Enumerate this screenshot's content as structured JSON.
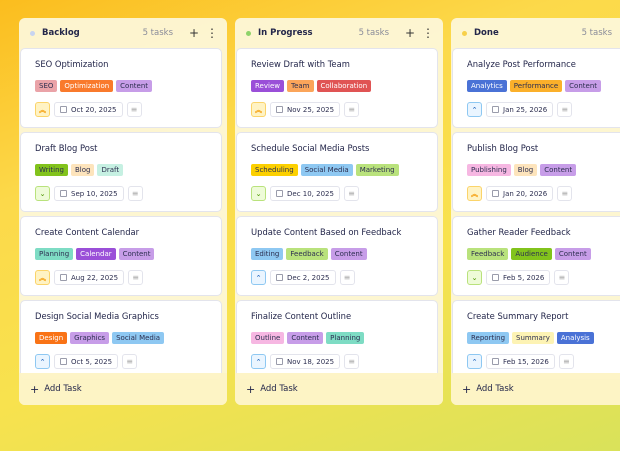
{
  "add_task_label": "Add Task",
  "columns": [
    {
      "title": "Backlog",
      "count": "5 tasks",
      "dot_color": "#c8d4f0",
      "cards": [
        {
          "title": "SEO Optimization",
          "priority": "high",
          "date": "Oct 20, 2025",
          "tags": [
            {
              "label": "SEO",
              "bg": "#eaa3a8",
              "fg": "#2d2f50"
            },
            {
              "label": "Optimization",
              "bg": "#f97a2c",
              "fg": "#fff"
            },
            {
              "label": "Content",
              "bg": "#c79de8",
              "fg": "#2d2f50"
            }
          ]
        },
        {
          "title": "Draft Blog Post",
          "priority": "low",
          "date": "Sep 10, 2025",
          "tags": [
            {
              "label": "Writing",
              "bg": "#82c31c",
              "fg": "#2d2f50"
            },
            {
              "label": "Blog",
              "bg": "#fde4bc",
              "fg": "#2d2f50"
            },
            {
              "label": "Draft",
              "bg": "#c6f0e2",
              "fg": "#2d2f50"
            }
          ]
        },
        {
          "title": "Create Content Calendar",
          "priority": "high",
          "date": "Aug 22, 2025",
          "tags": [
            {
              "label": "Planning",
              "bg": "#7edcc4",
              "fg": "#2d2f50"
            },
            {
              "label": "Calendar",
              "bg": "#9a4fd8",
              "fg": "#fff"
            },
            {
              "label": "Content",
              "bg": "#c79de8",
              "fg": "#2d2f50"
            }
          ]
        },
        {
          "title": "Design Social Media Graphics",
          "priority": "medium",
          "date": "Oct 5, 2025",
          "tags": [
            {
              "label": "Design",
              "bg": "#f97316",
              "fg": "#fff"
            },
            {
              "label": "Graphics",
              "bg": "#c79de8",
              "fg": "#2d2f50"
            },
            {
              "label": "Social Media",
              "bg": "#8ec8f2",
              "fg": "#2d2f50"
            }
          ]
        }
      ]
    },
    {
      "title": "In Progress",
      "count": "5 tasks",
      "dot_color": "#8ed36a",
      "cards": [
        {
          "title": "Review Draft with Team",
          "priority": "high",
          "date": "Nov 25, 2025",
          "tags": [
            {
              "label": "Review",
              "bg": "#9a4fd8",
              "fg": "#fff"
            },
            {
              "label": "Team",
              "bg": "#fba55a",
              "fg": "#2d2f50"
            },
            {
              "label": "Collaboration",
              "bg": "#e05454",
              "fg": "#fff"
            }
          ]
        },
        {
          "title": "Schedule Social Media Posts",
          "priority": "low",
          "date": "Dec 10, 2025",
          "tags": [
            {
              "label": "Scheduling",
              "bg": "#fcd000",
              "fg": "#2d2f50"
            },
            {
              "label": "Social Media",
              "bg": "#8ec8f2",
              "fg": "#2d2f50"
            },
            {
              "label": "Marketing",
              "bg": "#b9e27c",
              "fg": "#2d2f50"
            }
          ]
        },
        {
          "title": "Update Content Based on Feedback",
          "priority": "medium",
          "date": "Dec 2, 2025",
          "tags": [
            {
              "label": "Editing",
              "bg": "#8ec8f2",
              "fg": "#2d2f50"
            },
            {
              "label": "Feedback",
              "bg": "#b9e27c",
              "fg": "#2d2f50"
            },
            {
              "label": "Content",
              "bg": "#c79de8",
              "fg": "#2d2f50"
            }
          ]
        },
        {
          "title": "Finalize Content Outline",
          "priority": "medium",
          "date": "Nov 18, 2025",
          "tags": [
            {
              "label": "Outline",
              "bg": "#f6b7e2",
              "fg": "#2d2f50"
            },
            {
              "label": "Content",
              "bg": "#c79de8",
              "fg": "#2d2f50"
            },
            {
              "label": "Planning",
              "bg": "#7edcc4",
              "fg": "#2d2f50"
            }
          ]
        }
      ]
    },
    {
      "title": "Done",
      "count": "5 tasks",
      "dot_color": "#f7d04a",
      "cards": [
        {
          "title": "Analyze Post Performance",
          "priority": "medium",
          "date": "Jan 25, 2026",
          "tags": [
            {
              "label": "Analytics",
              "bg": "#4a72d6",
              "fg": "#fff"
            },
            {
              "label": "Performance",
              "bg": "#fbb02a",
              "fg": "#2d2f50"
            },
            {
              "label": "Content",
              "bg": "#c79de8",
              "fg": "#2d2f50"
            }
          ]
        },
        {
          "title": "Publish Blog Post",
          "priority": "high",
          "date": "Jan 20, 2026",
          "tags": [
            {
              "label": "Publishing",
              "bg": "#f6b7e2",
              "fg": "#2d2f50"
            },
            {
              "label": "Blog",
              "bg": "#fde4bc",
              "fg": "#2d2f50"
            },
            {
              "label": "Content",
              "bg": "#c79de8",
              "fg": "#2d2f50"
            }
          ]
        },
        {
          "title": "Gather Reader Feedback",
          "priority": "low",
          "date": "Feb 5, 2026",
          "tags": [
            {
              "label": "Feedback",
              "bg": "#b9e27c",
              "fg": "#2d2f50"
            },
            {
              "label": "Audience",
              "bg": "#82c31c",
              "fg": "#2d2f50"
            },
            {
              "label": "Content",
              "bg": "#c79de8",
              "fg": "#2d2f50"
            }
          ]
        },
        {
          "title": "Create Summary Report",
          "priority": "medium",
          "date": "Feb 15, 2026",
          "tags": [
            {
              "label": "Reporting",
              "bg": "#8ec8f2",
              "fg": "#2d2f50"
            },
            {
              "label": "Summary",
              "bg": "#fdf3b4",
              "fg": "#2d2f50"
            },
            {
              "label": "Analysis",
              "bg": "#4a72d6",
              "fg": "#fff"
            }
          ]
        }
      ]
    }
  ]
}
